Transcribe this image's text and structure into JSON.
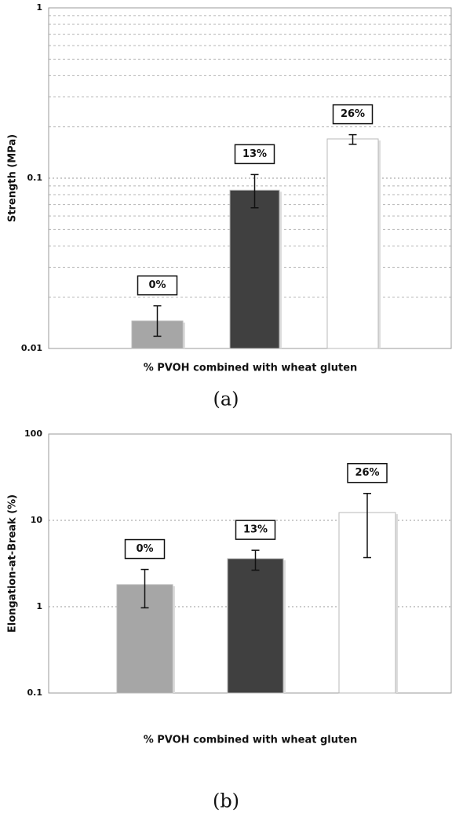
{
  "chart_data": [
    {
      "type": "bar",
      "log_scale": true,
      "minor_grid": true,
      "y_label": "Strength (MPa)",
      "x_label": "% PVOH combined with wheat gluten",
      "caption": "(a)",
      "categories": [
        "0%",
        "13%",
        "26%"
      ],
      "values": [
        0.0145,
        0.085,
        0.17
      ],
      "error_bars": [
        [
          0.0118,
          0.0178
        ],
        [
          0.067,
          0.105
        ],
        [
          0.158,
          0.18
        ]
      ],
      "colors": [
        "#a6a6a6",
        "#404040",
        "#ffffff"
      ],
      "ylim": [
        0.01,
        1
      ],
      "yticks": [
        0.01,
        0.1,
        1
      ]
    },
    {
      "type": "bar",
      "log_scale": true,
      "minor_grid": false,
      "y_label": "Elongation-at-Break (%)",
      "x_label": "% PVOH combined with wheat gluten",
      "caption": "(b)",
      "categories": [
        "0%",
        "13%",
        "26%"
      ],
      "values": [
        1.8,
        3.6,
        12.3
      ],
      "error_bars": [
        [
          0.97,
          2.7
        ],
        [
          2.65,
          4.5
        ],
        [
          3.7,
          20.5
        ]
      ],
      "colors": [
        "#a6a6a6",
        "#404040",
        "#ffffff"
      ],
      "ylim": [
        0.1,
        100
      ],
      "yticks": [
        0.1,
        1,
        10,
        100
      ]
    }
  ]
}
